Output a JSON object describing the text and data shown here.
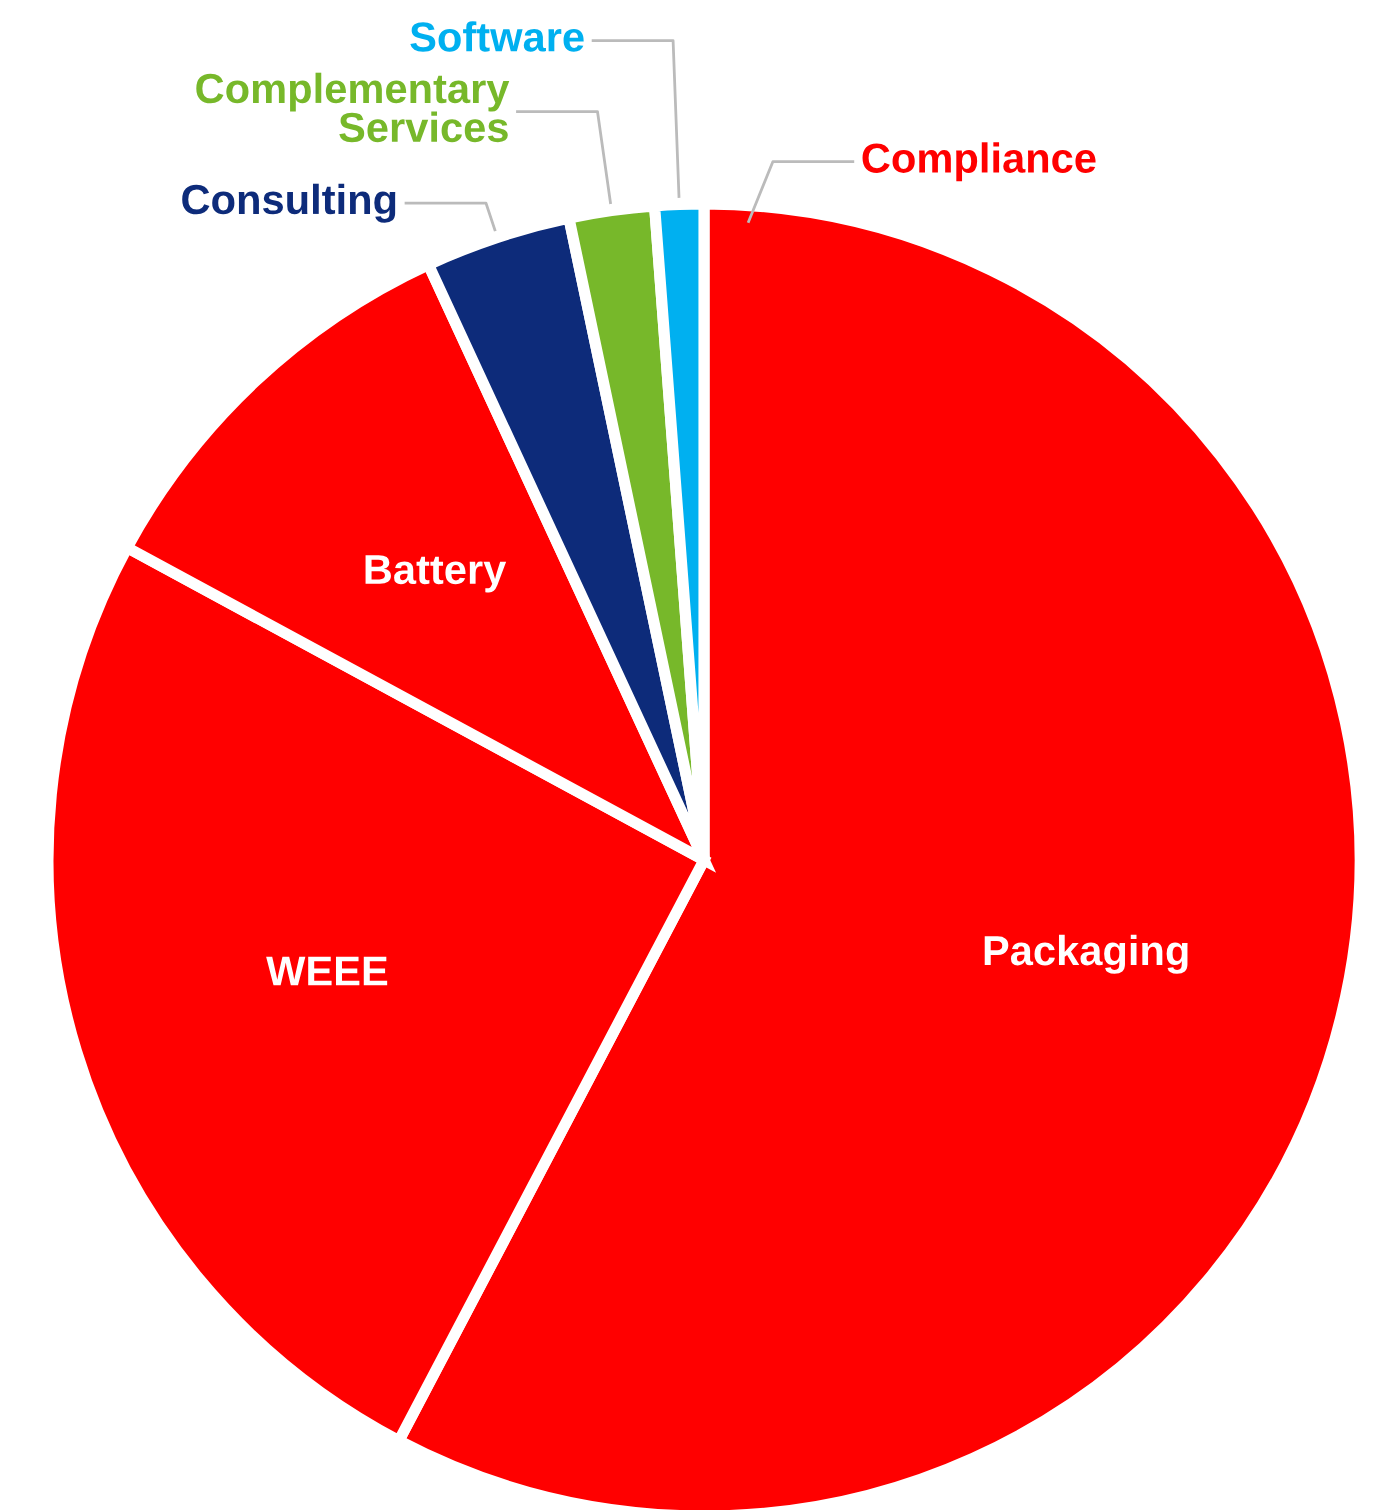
{
  "chart_data": {
    "type": "pie",
    "categories": [
      "Packaging",
      "WEEE",
      "Battery",
      "Consulting",
      "Complementary\nServices",
      "Software"
    ],
    "values": [
      57.7,
      25.2,
      10.2,
      3.6,
      2.1,
      1.2
    ],
    "colors": [
      "#ff0000",
      "#ff0000",
      "#ff0000",
      "#0d2b7a",
      "#77b82a",
      "#00b0f0"
    ],
    "annotations": [
      "Compliance"
    ]
  }
}
